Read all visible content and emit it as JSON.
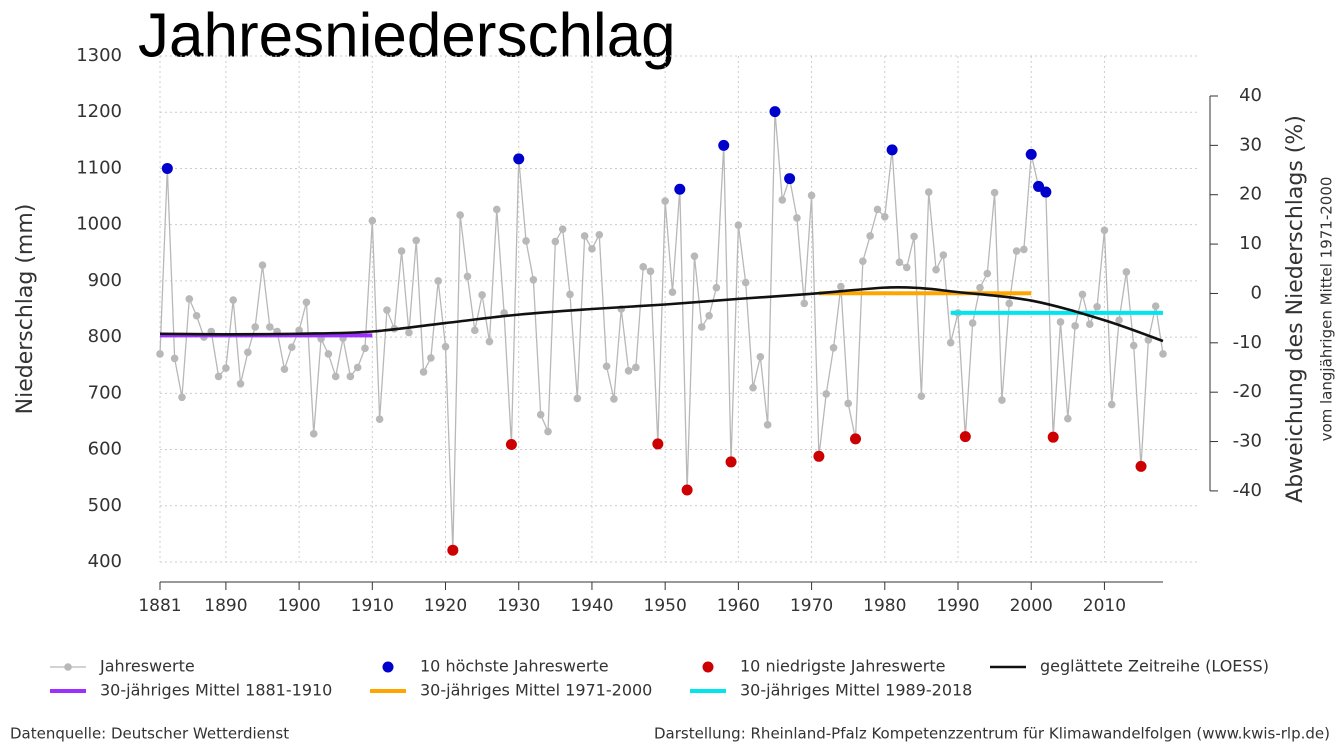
{
  "chart_data": {
    "type": "line",
    "title": "Jahresniederschlag",
    "y_label": "Niederschlag (mm)",
    "y2_label": "Abweichung des Niederschlags (%)",
    "y2_sublabel": "vom langjährigen Mittel 1971-2000",
    "source_left": "Datenquelle: Deutscher Wetterdienst",
    "source_right": "Darstellung: Rheinland-Pfalz Kompetenzzentrum für Klimawandelfolgen (www.kwis-rlp.de)",
    "xlim": [
      1881,
      2018
    ],
    "xticks": [
      1881,
      1890,
      1900,
      1910,
      1920,
      1930,
      1940,
      1950,
      1960,
      1970,
      1980,
      1990,
      2000,
      2010
    ],
    "ylim": [
      400,
      1300
    ],
    "yticks": [
      400,
      500,
      600,
      700,
      800,
      900,
      1000,
      1100,
      1200,
      1300
    ],
    "y2lim": [
      -54.4,
      48.1
    ],
    "y2ticks": [
      -40,
      -30,
      -20,
      -10,
      0,
      10,
      20,
      30,
      40
    ],
    "grid": true,
    "legend": "bottom",
    "series": [
      {
        "name": "Jahreswerte",
        "kind": "line-points",
        "color": "#b8b8b8",
        "x": [
          1881,
          1882,
          1883,
          1884,
          1885,
          1886,
          1887,
          1888,
          1889,
          1890,
          1891,
          1892,
          1893,
          1894,
          1895,
          1896,
          1897,
          1898,
          1899,
          1900,
          1901,
          1902,
          1903,
          1904,
          1905,
          1906,
          1907,
          1908,
          1909,
          1910,
          1911,
          1912,
          1913,
          1914,
          1915,
          1916,
          1917,
          1918,
          1919,
          1920,
          1921,
          1922,
          1923,
          1924,
          1925,
          1926,
          1927,
          1928,
          1929,
          1930,
          1931,
          1932,
          1933,
          1934,
          1935,
          1936,
          1937,
          1938,
          1939,
          1940,
          1941,
          1942,
          1943,
          1944,
          1945,
          1946,
          1947,
          1948,
          1949,
          1950,
          1951,
          1952,
          1953,
          1954,
          1955,
          1956,
          1957,
          1958,
          1959,
          1960,
          1961,
          1962,
          1963,
          1964,
          1965,
          1966,
          1967,
          1968,
          1969,
          1970,
          1971,
          1972,
          1973,
          1974,
          1975,
          1976,
          1977,
          1978,
          1979,
          1980,
          1981,
          1982,
          1983,
          1984,
          1985,
          1986,
          1987,
          1988,
          1989,
          1990,
          1991,
          1992,
          1993,
          1994,
          1995,
          1996,
          1997,
          1998,
          1999,
          2000,
          2001,
          2002,
          2003,
          2004,
          2005,
          2006,
          2007,
          2008,
          2009,
          2010,
          2011,
          2012,
          2013,
          2014,
          2015,
          2016,
          2017,
          2018
        ],
        "values": [
          770,
          1100,
          762,
          693,
          868,
          838,
          800,
          810,
          730,
          745,
          866,
          717,
          773,
          818,
          928,
          818,
          810,
          743,
          782,
          812,
          862,
          628,
          797,
          770,
          730,
          798,
          730,
          746,
          780,
          1007,
          654,
          848,
          815,
          953,
          808,
          972,
          738,
          763,
          900,
          783,
          421,
          1017,
          908,
          812,
          875,
          792,
          1027,
          843,
          609,
          1117,
          971,
          902,
          662,
          632,
          970,
          992,
          876,
          691,
          980,
          957,
          982,
          748,
          690,
          850,
          740,
          746,
          925,
          917,
          610,
          1042,
          880,
          1063,
          528,
          944,
          818,
          838,
          888,
          1141,
          578,
          999,
          897,
          710,
          765,
          644,
          1201,
          1044,
          1082,
          1012,
          860,
          1052,
          588,
          699,
          781,
          890,
          682,
          619,
          935,
          980,
          1027,
          1014,
          1133,
          933,
          924,
          979,
          695,
          1058,
          920,
          946,
          790,
          843,
          623,
          825,
          888,
          913,
          1057,
          688,
          860,
          953,
          956,
          1125,
          1068,
          1058,
          622,
          827,
          655,
          820,
          876,
          823,
          854,
          990,
          680,
          830,
          916,
          785,
          570,
          795,
          855,
          770
        ]
      },
      {
        "name": "10 höchste Jahreswerte",
        "kind": "points",
        "color": "#0000cc",
        "x": [
          1882,
          1930,
          1952,
          1958,
          1965,
          1967,
          1981,
          2000,
          2001,
          2002
        ],
        "values": [
          1100,
          1117,
          1063,
          1141,
          1201,
          1082,
          1133,
          1125,
          1068,
          1058
        ]
      },
      {
        "name": "10 niedrigste Jahreswerte",
        "kind": "points",
        "color": "#cc0000",
        "x": [
          1921,
          1929,
          1949,
          1953,
          1959,
          1971,
          1976,
          1991,
          2003,
          2015
        ],
        "values": [
          421,
          609,
          610,
          528,
          578,
          588,
          619,
          623,
          622,
          570
        ]
      },
      {
        "name": "geglättete Zeitreihe (LOESS)",
        "kind": "line",
        "color": "#111111",
        "x": [
          1881,
          1890,
          1900,
          1910,
          1920,
          1930,
          1940,
          1950,
          1960,
          1970,
          1980,
          1985,
          1990,
          2000,
          2010,
          2018
        ],
        "values": [
          806,
          805,
          806,
          810,
          825,
          840,
          850,
          858,
          868,
          877,
          888,
          887,
          880,
          865,
          830,
          793
        ]
      },
      {
        "name": "30-jähriges Mittel 1881-1910",
        "kind": "segment",
        "color": "#9b30ff",
        "x": [
          1881,
          1910
        ],
        "values": [
          803,
          803
        ]
      },
      {
        "name": "30-jähriges Mittel 1971-2000",
        "kind": "segment",
        "color": "#ffa500",
        "x": [
          1971,
          2000
        ],
        "values": [
          878,
          878
        ]
      },
      {
        "name": "30-jähriges Mittel 1989-2018",
        "kind": "segment",
        "color": "#00e5ee",
        "x": [
          1989,
          2018
        ],
        "values": [
          843,
          843
        ]
      }
    ]
  }
}
